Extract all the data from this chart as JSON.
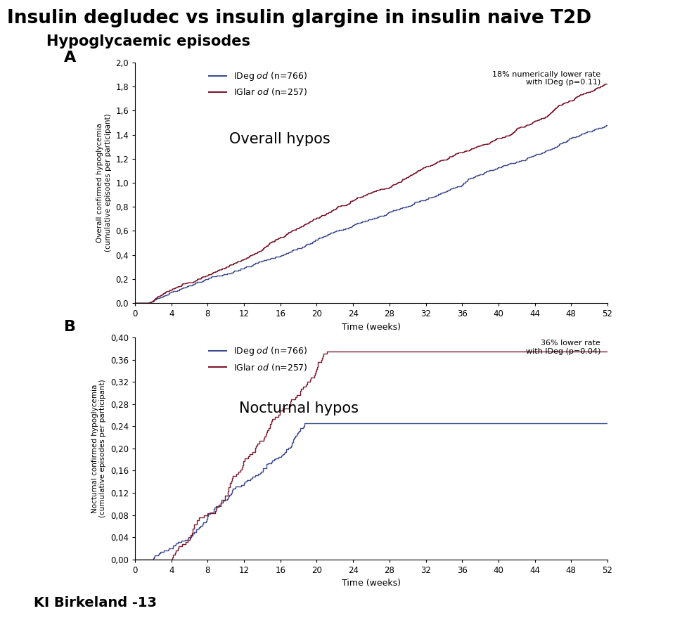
{
  "title1": "Insulin degludec vs insulin glargine in insulin naive T2D",
  "title2": "Hypoglycaemic episodes",
  "panel_a_label": "A",
  "panel_b_label": "B",
  "panel_a_annotation": "18% numerically lower rate\nwith IDeg (p=0.11)",
  "panel_b_annotation": "36% lower rate\nwith IDeg (p=0.04)",
  "panel_a_text": "Overall hypos",
  "panel_b_text": "Nocturnal hypos",
  "legend_ideg_prefix": "IDeg ",
  "legend_ideg_italic": "od",
  "legend_ideg_suffix": " (n=766)",
  "legend_iglar_prefix": "IGlar ",
  "legend_iglar_italic": "od",
  "legend_iglar_suffix": " (n=257)",
  "xlabel": "Time (weeks)",
  "ylabel_a": "Overall confirmed hypoglycemia\n(cumulative episodes per participant)",
  "ylabel_b": "Nocturnal confirmed hypoglycemia\n(cumulative episodes per participant)",
  "xticks": [
    0,
    4,
    8,
    12,
    16,
    20,
    24,
    28,
    32,
    36,
    40,
    44,
    48,
    52
  ],
  "yticks_a": [
    0.0,
    0.2,
    0.4,
    0.6,
    0.8,
    1.0,
    1.2,
    1.4,
    1.6,
    1.8,
    2.0
  ],
  "ytick_labels_a": [
    "0,0",
    "0,2",
    "0,4",
    "0,6",
    "0,8",
    "1,0",
    "1,2",
    "1,4",
    "1,6",
    "1,8",
    "2,0"
  ],
  "yticks_b": [
    0.0,
    0.04,
    0.08,
    0.12,
    0.16,
    0.2,
    0.24,
    0.28,
    0.32,
    0.36,
    0.4
  ],
  "ytick_labels_b": [
    "0,00",
    "0,04",
    "0,08",
    "0,12",
    "0,16",
    "0,20",
    "0,24",
    "0,28",
    "0,32",
    "0,36",
    "0,40"
  ],
  "color_ideg": "#3d4b8a",
  "color_iglar": "#7a1a2e",
  "footer": "KI Birkeland -13",
  "background": "#ffffff",
  "ideg_a_final": 1.48,
  "iglar_a_final": 1.82,
  "ideg_b_final": 0.245,
  "iglar_b_final": 0.375
}
